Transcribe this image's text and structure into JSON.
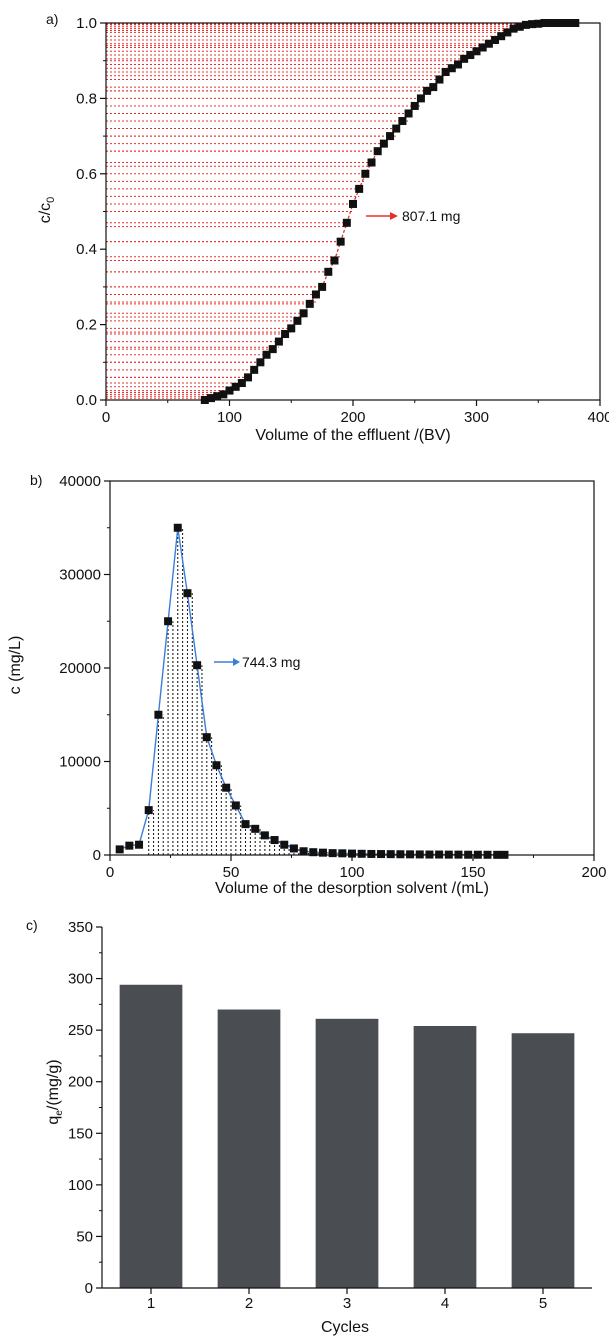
{
  "chart_data": [
    {
      "type": "scatter",
      "panel_label": "a)",
      "xlabel": "Volume of the effluent /(BV)",
      "ylabel_main": "c/c",
      "ylabel_sub": "0",
      "xlim": [
        0,
        400
      ],
      "ylim": [
        0,
        1.0
      ],
      "xticks": [
        "0",
        "100",
        "200",
        "300",
        "400"
      ],
      "yticks": [
        "0.0",
        "0.2",
        "0.4",
        "0.6",
        "0.8",
        "1.0"
      ],
      "annotation": "807.1 mg",
      "colors": {
        "marker": "#111111",
        "line": "#d62728",
        "fill": "#e8302a",
        "arrow": "#e8302a"
      },
      "series": [
        {
          "x": [
            80,
            85,
            90,
            95,
            100,
            105,
            110,
            115,
            120,
            125,
            130,
            135,
            140,
            145,
            150,
            155,
            160,
            165,
            170,
            175,
            180,
            185,
            190,
            195,
            200,
            205,
            210,
            215,
            220,
            225,
            230,
            235,
            240,
            245,
            250,
            255,
            260,
            265,
            270,
            275,
            280,
            285,
            290,
            295,
            300,
            305,
            310,
            315,
            320,
            325,
            330,
            335,
            340,
            345,
            350,
            355,
            360,
            365,
            370,
            375,
            380
          ],
          "y": [
            0.0,
            0.005,
            0.01,
            0.015,
            0.025,
            0.035,
            0.045,
            0.06,
            0.08,
            0.1,
            0.12,
            0.135,
            0.155,
            0.175,
            0.19,
            0.21,
            0.23,
            0.255,
            0.28,
            0.3,
            0.34,
            0.37,
            0.42,
            0.47,
            0.52,
            0.56,
            0.6,
            0.63,
            0.66,
            0.68,
            0.7,
            0.72,
            0.74,
            0.76,
            0.78,
            0.8,
            0.82,
            0.83,
            0.85,
            0.87,
            0.88,
            0.89,
            0.905,
            0.915,
            0.925,
            0.935,
            0.945,
            0.955,
            0.965,
            0.975,
            0.985,
            0.99,
            0.995,
            0.997,
            0.998,
            1.0,
            1.0,
            1.0,
            1.0,
            1.0,
            1.0
          ]
        }
      ]
    },
    {
      "type": "scatter",
      "panel_label": "b)",
      "xlabel": "Volume of the desorption solvent /(mL)",
      "ylabel": "c (mg/L)",
      "xlim": [
        0,
        200
      ],
      "ylim": [
        0,
        40000
      ],
      "xticks": [
        "0",
        "50",
        "100",
        "150",
        "200"
      ],
      "yticks": [
        "0",
        "10000",
        "20000",
        "30000",
        "40000"
      ],
      "annotation": "744.3 mg",
      "colors": {
        "marker": "#111111",
        "line": "#3b7dd8",
        "fill": "#111111",
        "arrow": "#3b7dd8"
      },
      "series": [
        {
          "x": [
            4,
            8,
            12,
            16,
            20,
            24,
            28,
            32,
            36,
            40,
            44,
            48,
            52,
            56,
            60,
            64,
            68,
            72,
            76,
            80,
            84,
            88,
            92,
            96,
            100,
            104,
            108,
            112,
            116,
            120,
            124,
            128,
            132,
            136,
            140,
            144,
            148,
            152,
            156,
            160,
            163
          ],
          "y": [
            600,
            1000,
            1100,
            4800,
            15000,
            25000,
            35000,
            28000,
            20300,
            12600,
            9600,
            7200,
            5300,
            3300,
            2800,
            2100,
            1600,
            1100,
            700,
            400,
            300,
            250,
            200,
            180,
            150,
            130,
            110,
            100,
            90,
            80,
            70,
            60,
            50,
            50,
            40,
            40,
            30,
            30,
            25,
            20,
            20
          ]
        }
      ]
    },
    {
      "type": "bar",
      "panel_label": "c)",
      "xlabel": "Cycles",
      "ylabel_main": "q",
      "ylabel_sub": "e",
      "ylabel_rest": "/(mg/g)",
      "ylim": [
        0,
        350
      ],
      "yticks": [
        "0",
        "50",
        "100",
        "150",
        "200",
        "250",
        "300",
        "350"
      ],
      "categories": [
        "1",
        "2",
        "3",
        "4",
        "5"
      ],
      "values": [
        294,
        270,
        261,
        254,
        247
      ],
      "colors": {
        "bar": "#4a4d52"
      }
    }
  ]
}
